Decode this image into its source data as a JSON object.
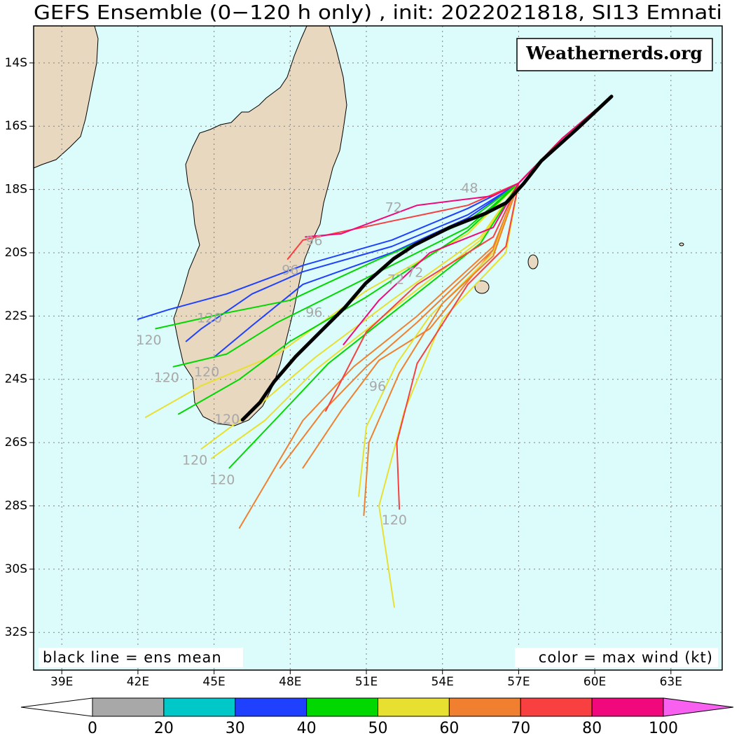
{
  "map": {
    "title": "GEFS Ensemble (0−120 h only) , init: 2022021818, SI13 Emnati",
    "watermark": "Weathernerds.org",
    "note_left": "black line = ens mean",
    "note_right": "color = max wind (kt)",
    "xlim": [
      37.89,
      65.02
    ],
    "ylim": [
      -33.19,
      -12.83
    ],
    "xticks": [
      {
        "value": 39,
        "label": "39E"
      },
      {
        "value": 42,
        "label": "42E"
      },
      {
        "value": 45,
        "label": "45E"
      },
      {
        "value": 48,
        "label": "48E"
      },
      {
        "value": 51,
        "label": "51E"
      },
      {
        "value": 54,
        "label": "54E"
      },
      {
        "value": 57,
        "label": "57E"
      },
      {
        "value": 60,
        "label": "60E"
      },
      {
        "value": 63,
        "label": "63E"
      }
    ],
    "yticks": [
      {
        "value": -14,
        "label": "14S"
      },
      {
        "value": -16,
        "label": "16S"
      },
      {
        "value": -18,
        "label": "18S"
      },
      {
        "value": -20,
        "label": "20S"
      },
      {
        "value": -22,
        "label": "22S"
      },
      {
        "value": -24,
        "label": "24S"
      },
      {
        "value": -26,
        "label": "26S"
      },
      {
        "value": -28,
        "label": "28S"
      },
      {
        "value": -30,
        "label": "30S"
      },
      {
        "value": -32,
        "label": "32S"
      }
    ],
    "grid": true,
    "tracks": [
      {
        "color": "#2040ff",
        "lon": [
          60.6,
          58.7,
          57.0,
          55.0,
          52.0,
          48.5,
          45.5,
          43.2,
          42.0
        ],
        "lat": [
          -15.1,
          -16.4,
          -17.8,
          -18.6,
          -19.6,
          -20.4,
          -21.3,
          -21.8,
          -22.1
        ]
      },
      {
        "color": "#2040ff",
        "lon": [
          60.6,
          58.7,
          57.0,
          55.0,
          52.0,
          48.5,
          46.5,
          44.5,
          43.9
        ],
        "lat": [
          -15.1,
          -16.4,
          -17.8,
          -18.8,
          -19.8,
          -20.6,
          -21.3,
          -22.4,
          -22.8
        ]
      },
      {
        "color": "#2040ff",
        "lon": [
          60.6,
          58.7,
          57.0,
          55.0,
          52.0,
          48.5,
          46.5,
          45.0
        ],
        "lat": [
          -15.1,
          -16.4,
          -17.8,
          -18.9,
          -20.0,
          -21.0,
          -22.3,
          -23.3
        ]
      },
      {
        "color": "#00d800",
        "lon": [
          60.6,
          58.7,
          57.0,
          55.0,
          51.5,
          48.0,
          45.5,
          42.7
        ],
        "lat": [
          -15.1,
          -16.4,
          -17.8,
          -19.0,
          -20.2,
          -21.5,
          -21.9,
          -22.4
        ]
      },
      {
        "color": "#00d800",
        "lon": [
          60.6,
          58.7,
          57.0,
          55.0,
          51.0,
          47.5,
          45.5,
          43.4
        ],
        "lat": [
          -15.1,
          -16.4,
          -17.8,
          -19.2,
          -20.8,
          -22.2,
          -23.2,
          -23.6
        ]
      },
      {
        "color": "#e8e030",
        "lon": [
          60.6,
          58.7,
          57.0,
          55.0,
          51.0,
          47.5,
          44.5,
          42.3
        ],
        "lat": [
          -15.1,
          -16.4,
          -17.8,
          -19.4,
          -21.2,
          -23.2,
          -24.2,
          -25.2
        ]
      },
      {
        "color": "#00d800",
        "lon": [
          60.6,
          58.7,
          57.0,
          55.0,
          51.0,
          48.0,
          46.0,
          43.6
        ],
        "lat": [
          -15.1,
          -16.4,
          -17.8,
          -19.3,
          -21.4,
          -22.8,
          -24.0,
          -25.1
        ]
      },
      {
        "color": "#e8e030",
        "lon": [
          60.6,
          58.7,
          57.0,
          55.5,
          52.0,
          49.0,
          46.5,
          44.5
        ],
        "lat": [
          -15.1,
          -16.4,
          -17.8,
          -19.5,
          -21.5,
          -23.3,
          -25.0,
          -26.2
        ]
      },
      {
        "color": "#e8e030",
        "lon": [
          60.6,
          58.7,
          57.0,
          55.5,
          52.0,
          49.0,
          47.0,
          44.9
        ],
        "lat": [
          -15.1,
          -16.4,
          -17.8,
          -19.6,
          -21.8,
          -23.7,
          -25.3,
          -26.5
        ]
      },
      {
        "color": "#00d800",
        "lon": [
          60.6,
          58.7,
          57.0,
          55.5,
          52.5,
          49.5,
          47.5,
          45.6
        ],
        "lat": [
          -15.1,
          -16.4,
          -17.8,
          -19.7,
          -21.6,
          -23.5,
          -25.2,
          -26.8
        ]
      },
      {
        "color": "#f08030",
        "lon": [
          60.6,
          58.7,
          57.0,
          56.0,
          53.0,
          50.5,
          48.5,
          46.0
        ],
        "lat": [
          -15.1,
          -16.4,
          -17.8,
          -19.8,
          -22.0,
          -23.6,
          -25.3,
          -28.7
        ]
      },
      {
        "color": "#f08030",
        "lon": [
          60.6,
          58.7,
          57.0,
          56.0,
          53.0,
          51.0,
          49.3,
          47.6
        ],
        "lat": [
          -15.1,
          -16.4,
          -17.8,
          -19.9,
          -22.2,
          -23.6,
          -25.0,
          -26.8
        ]
      },
      {
        "color": "#f08030",
        "lon": [
          60.6,
          58.7,
          57.0,
          56.0,
          53.5,
          51.5,
          50.0,
          48.5
        ],
        "lat": [
          -15.1,
          -16.4,
          -17.8,
          -19.9,
          -22.4,
          -23.4,
          -25.0,
          -26.8
        ]
      },
      {
        "color": "#e8e030",
        "lon": [
          60.6,
          58.7,
          57.0,
          56.0,
          53.5,
          52.2,
          51.0,
          50.7
        ],
        "lat": [
          -15.1,
          -16.4,
          -17.8,
          -20.0,
          -22.0,
          -23.5,
          -25.5,
          -27.7
        ]
      },
      {
        "color": "#f08030",
        "lon": [
          60.6,
          58.7,
          57.0,
          56.0,
          54.0,
          52.3,
          51.1,
          50.9
        ],
        "lat": [
          -15.1,
          -16.4,
          -17.8,
          -20.1,
          -21.6,
          -23.8,
          -26.0,
          -28.3
        ]
      },
      {
        "color": "#e8e030",
        "lon": [
          60.6,
          58.7,
          57.0,
          56.5,
          54.0,
          52.5,
          51.5,
          52.1
        ],
        "lat": [
          -15.1,
          -16.4,
          -17.8,
          -20.0,
          -22.1,
          -25.0,
          -28.0,
          -31.2
        ]
      },
      {
        "color": "#f84040",
        "lon": [
          60.6,
          58.7,
          57.0,
          56.5,
          55.0,
          53.0,
          52.2,
          52.3
        ],
        "lat": [
          -15.1,
          -16.4,
          -17.8,
          -19.8,
          -21.0,
          -23.5,
          -26.0,
          -28.1
        ]
      },
      {
        "color": "#f84040",
        "lon": [
          60.6,
          58.7,
          57.0,
          56.0,
          53.0,
          51.0,
          49.4
        ],
        "lat": [
          -15.1,
          -16.4,
          -17.8,
          -19.5,
          -21.0,
          -22.5,
          -25.0
        ]
      },
      {
        "color": "#f0087c",
        "lon": [
          60.6,
          58.7,
          57.0,
          56.0,
          53.5,
          51.5,
          50.1
        ],
        "lat": [
          -15.1,
          -16.4,
          -17.8,
          -19.2,
          -20.0,
          -21.5,
          -22.9
        ]
      },
      {
        "color": "#f84040",
        "lon": [
          60.6,
          58.7,
          57.0,
          55.0,
          52.0,
          48.5,
          47.9
        ],
        "lat": [
          -15.1,
          -16.4,
          -17.8,
          -18.5,
          -19.0,
          -19.6,
          -20.2
        ]
      },
      {
        "color": "#f0087c",
        "lon": [
          60.6,
          58.7,
          57.0,
          56.0,
          53.0,
          50.0,
          48.6
        ],
        "lat": [
          -15.1,
          -16.4,
          -17.8,
          -18.2,
          -18.5,
          -19.4,
          -19.5
        ]
      }
    ],
    "mean_track": {
      "color": "#000000",
      "lon": [
        60.66,
        59.28,
        57.89,
        57.2,
        56.51,
        55.68,
        54.29,
        52.91,
        52.07,
        50.97,
        50.14,
        49.3,
        48.2,
        47.37,
        46.81,
        46.12
      ],
      "lat": [
        -15.06,
        -16.1,
        -17.1,
        -17.81,
        -18.42,
        -18.76,
        -19.2,
        -19.75,
        -20.19,
        -20.97,
        -21.74,
        -22.41,
        -23.29,
        -24.07,
        -24.73,
        -25.28
      ]
    },
    "hour_labels": [
      {
        "hour": 120,
        "lon": 42.43,
        "lat": -22.78
      },
      {
        "hour": 120,
        "lon": 44.82,
        "lat": -22.08
      },
      {
        "hour": 120,
        "lon": 43.13,
        "lat": -23.96
      },
      {
        "hour": 120,
        "lon": 44.71,
        "lat": -23.78
      },
      {
        "hour": 120,
        "lon": 45.51,
        "lat": -25.28
      },
      {
        "hour": 120,
        "lon": 44.24,
        "lat": -26.57
      },
      {
        "hour": 120,
        "lon": 45.32,
        "lat": -27.19
      },
      {
        "hour": 120,
        "lon": 52.1,
        "lat": -28.47
      },
      {
        "hour": 96,
        "lon": 48.94,
        "lat": -19.64
      },
      {
        "hour": 96,
        "lon": 48.0,
        "lat": -20.57
      },
      {
        "hour": 96,
        "lon": 48.94,
        "lat": -21.9
      },
      {
        "hour": 96,
        "lon": 51.44,
        "lat": -24.24
      },
      {
        "hour": 72,
        "lon": 52.07,
        "lat": -18.58
      },
      {
        "hour": 72,
        "lon": 52.91,
        "lat": -20.64
      },
      {
        "hour": 72,
        "lon": 52.16,
        "lat": -20.86
      },
      {
        "hour": 48,
        "lon": 55.07,
        "lat": -17.98
      }
    ]
  },
  "colorbar": {
    "bounds": [
      0,
      20,
      30,
      40,
      50,
      60,
      70,
      80,
      100
    ],
    "colors": [
      "#a8a8a8",
      "#00c8c8",
      "#2040ff",
      "#00d800",
      "#e8e030",
      "#f08030",
      "#f84040",
      "#f0087c"
    ],
    "under": "#ffffff",
    "over": "#f860f0"
  }
}
